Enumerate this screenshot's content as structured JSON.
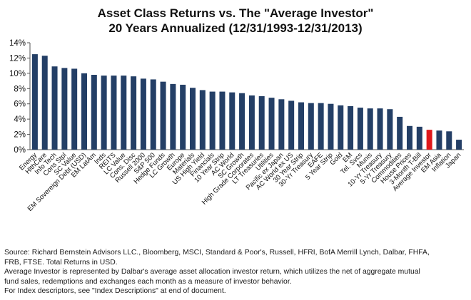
{
  "chart_data": {
    "type": "bar",
    "title": "Asset Class Returns vs. The \"Average Investor\"",
    "subtitle": "20 Years Annualized (12/31/1993-12/31/2013)",
    "xlabel": "",
    "ylabel": "",
    "ylim": [
      0,
      14
    ],
    "yticks": [
      "0%",
      "2%",
      "4%",
      "6%",
      "8%",
      "10%",
      "12%",
      "14%"
    ],
    "grid": false,
    "legend": "none",
    "bar_color": "#243f66",
    "highlight_color": "#e0181b",
    "highlight_category": "Average Investor",
    "categories": [
      "Energy",
      "HlthCare",
      "Info Tech",
      "Cons Stpl",
      "SC Value",
      "EM Sovereign Debt (USD)",
      "EM LatAm",
      "Inds",
      "REITS",
      "LC Value",
      "Cons. Disc",
      "Russell 2000",
      "S&P 500",
      "Hedge Funds",
      "LC Growth",
      "Europe",
      "Materials",
      "US High Yield",
      "Financials",
      "10 Year Strip",
      "AC World",
      "SC Growth",
      "High Grade Corporates",
      "LT Treasuries",
      "Utilities",
      "Pacific ex Japan",
      "AC World ex US",
      "30 Year Strip",
      "30-Yr Treasury",
      "EAFE",
      "5 Year Strip",
      "Gold",
      "EM",
      "Tel. Svcs",
      "Munis",
      "10-Yr Treasury",
      "5-Yr Treasury",
      "Commodities",
      "House Prices",
      "3-Month T-Bill",
      "Average Investor",
      "EM Asia",
      "Inflation",
      "Japan"
    ],
    "values": [
      12.5,
      12.3,
      10.9,
      10.7,
      10.6,
      10.0,
      9.8,
      9.7,
      9.7,
      9.7,
      9.6,
      9.3,
      9.2,
      8.9,
      8.6,
      8.5,
      8.1,
      7.8,
      7.6,
      7.6,
      7.5,
      7.4,
      7.1,
      7.0,
      6.8,
      6.6,
      6.4,
      6.2,
      6.1,
      6.1,
      6.0,
      5.8,
      5.7,
      5.5,
      5.4,
      5.4,
      5.3,
      4.3,
      3.1,
      3.0,
      2.6,
      2.5,
      2.4,
      1.3
    ]
  },
  "notes": [
    "Source: Richard Bernstein Advisors LLC., Bloomberg, MSCI, Standard & Poor's, Russell, HFRI, BofA Merrill Lynch, Dalbar, FHFA,",
    "FRB, FTSE.  Total Returns in USD.",
    "Average Investor is represented by Dalbar's average asset allocation investor return, which utilizes the net of aggregate mutual",
    "fund sales, redemptions and exchanges each month as a measure of investor behavior.",
    "For Index descriptors, see \"Index Descriptions\" at end of document."
  ]
}
